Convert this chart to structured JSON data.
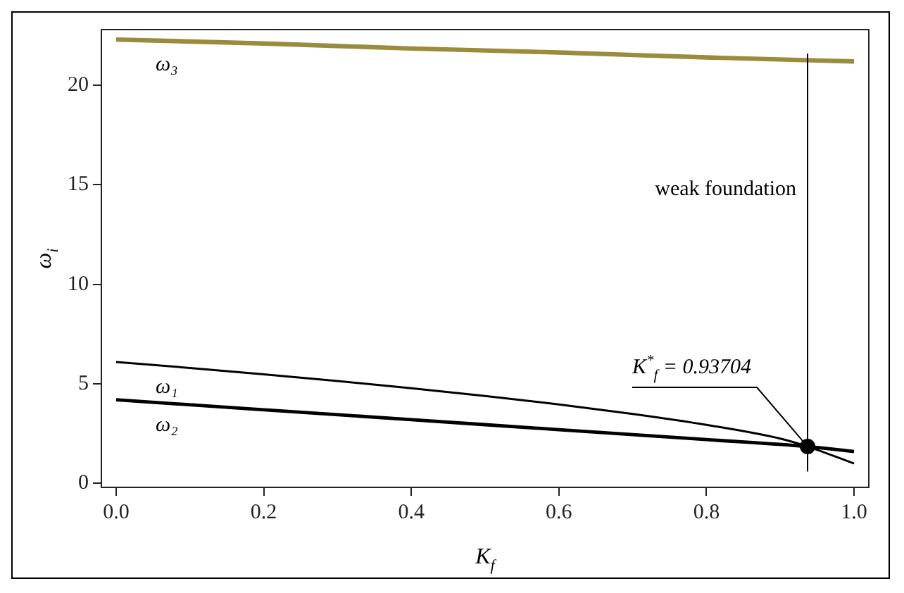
{
  "chart_data": {
    "type": "line",
    "xlabel": "K$_{f}$",
    "ylabel": "ω$_{i}$",
    "xlim": [
      -0.02,
      1.02
    ],
    "ylim": [
      -0.2,
      22.8
    ],
    "xticks": [
      {
        "value": 0,
        "label": "0.0"
      },
      {
        "value": 0.2,
        "label": "0.2"
      },
      {
        "value": 0.4,
        "label": "0.4"
      },
      {
        "value": 0.6,
        "label": "0.6"
      },
      {
        "value": 0.8,
        "label": "0.8"
      },
      {
        "value": 1,
        "label": "1.0"
      }
    ],
    "yticks": [
      0,
      5,
      10,
      15,
      20
    ],
    "grid": false,
    "legend": false,
    "line_style": "solid",
    "series": [
      {
        "name": "ω₃",
        "color": "#9a8c3c",
        "x": [
          0,
          0.2,
          0.4,
          0.6,
          0.8,
          1
        ],
        "values": [
          22.3,
          22.1,
          21.85,
          21.65,
          21.4,
          21.2
        ]
      },
      {
        "name": "ω₁",
        "color": "#000000",
        "x": [
          0,
          0.1,
          0.2,
          0.3,
          0.4,
          0.5,
          0.6,
          0.7,
          0.8,
          0.9,
          0.93704,
          1
        ],
        "values": [
          6.1,
          5.8,
          5.48,
          5.14,
          4.78,
          4.39,
          3.97,
          3.49,
          2.94,
          2.25,
          1.85,
          1.0
        ]
      },
      {
        "name": "ω₂",
        "color": "#000000",
        "x": [
          0,
          0.2,
          0.4,
          0.6,
          0.8,
          0.93704,
          1
        ],
        "values": [
          4.2,
          3.7,
          3.2,
          2.7,
          2.2,
          1.85,
          1.6
        ]
      },
      {
        "type": "scatter",
        "marker": "circle",
        "color": "#000000",
        "x": [
          0.93704
        ],
        "values": [
          1.85
        ]
      }
    ],
    "ref_lines": [
      {
        "axis": "x",
        "value": 0.93704,
        "color": "#000000"
      }
    ],
    "annotations": [
      {
        "text": "K$^{*}$$_{f}$ = 0.93704",
        "x": 0.93704,
        "y": 1.85
      },
      "weak foundation"
    ]
  }
}
